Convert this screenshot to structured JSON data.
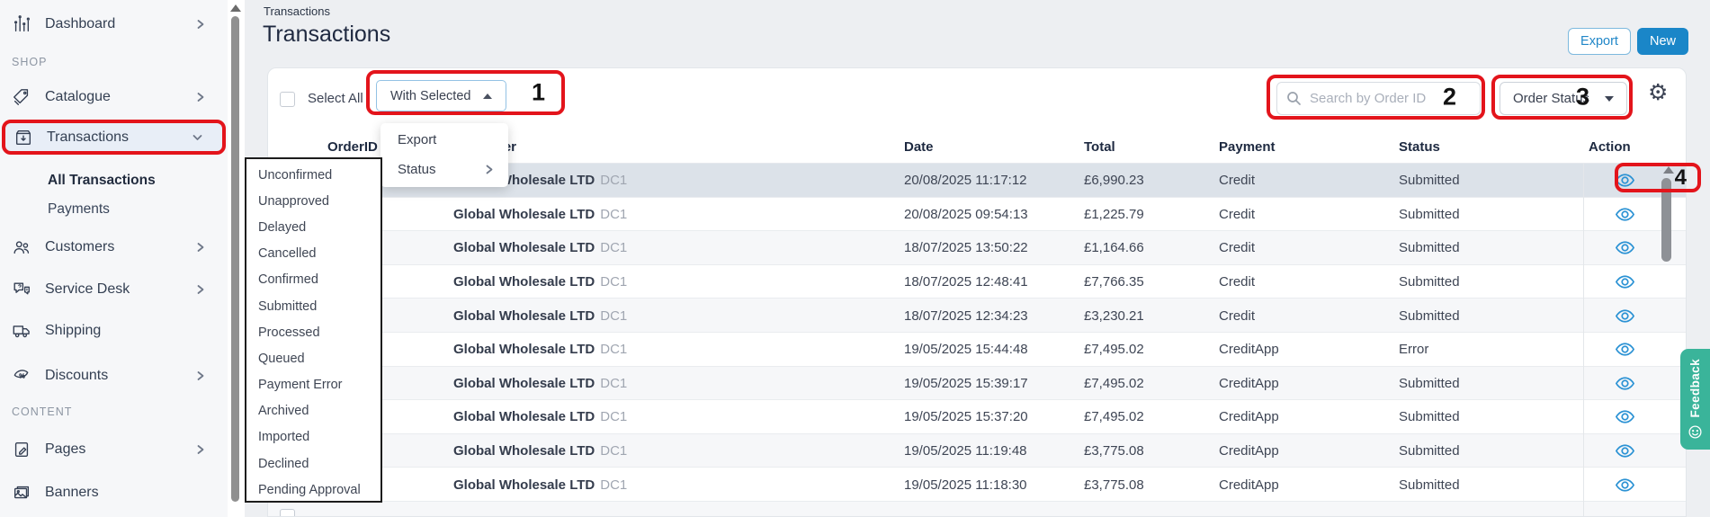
{
  "app": {
    "breadcrumb": "Transactions",
    "title": "Transactions"
  },
  "header_buttons": {
    "export": "Export",
    "new": "New"
  },
  "toolbar": {
    "select_all": "Select All",
    "with_selected": "With Selected",
    "search_placeholder": "Search by Order ID",
    "order_status": "Order Status",
    "gear_icon": "⚙"
  },
  "sidebar": {
    "items": [
      {
        "label": "Dashboard",
        "icon": "dashboard-icon",
        "chevron": "right"
      },
      {
        "label": "SHOP",
        "type": "section"
      },
      {
        "label": "Catalogue",
        "icon": "catalogue-icon",
        "chevron": "right"
      },
      {
        "label": "Transactions",
        "icon": "transactions-icon",
        "chevron": "down",
        "active": true
      },
      {
        "label": "All Transactions",
        "type": "subitem",
        "active": true
      },
      {
        "label": "Payments",
        "type": "subitem"
      },
      {
        "label": "Customers",
        "icon": "customers-icon",
        "chevron": "right"
      },
      {
        "label": "Service Desk",
        "icon": "service-desk-icon",
        "chevron": "right"
      },
      {
        "label": "Shipping",
        "icon": "shipping-icon"
      },
      {
        "label": "Discounts",
        "icon": "discounts-icon",
        "chevron": "right"
      },
      {
        "label": "CONTENT",
        "type": "section"
      },
      {
        "label": "Pages",
        "icon": "pages-icon",
        "chevron": "right"
      },
      {
        "label": "Banners",
        "icon": "banners-icon"
      }
    ]
  },
  "with_selected_menu": {
    "items": [
      {
        "label": "Export"
      },
      {
        "label": "Status",
        "has_submenu": true
      }
    ]
  },
  "status_menu": {
    "items": [
      "Unconfirmed",
      "Unapproved",
      "Delayed",
      "Cancelled",
      "Confirmed",
      "Submitted",
      "Processed",
      "Queued",
      "Payment Error",
      "Archived",
      "Imported",
      "Declined",
      "Pending Approval"
    ]
  },
  "table": {
    "headers": [
      "OrderID",
      "Customer",
      "Date",
      "Total",
      "Payment",
      "Status",
      "Action"
    ],
    "rows": [
      {
        "customer": "Global Wholesale LTD",
        "customer_suffix": "DC1",
        "date": "20/08/2025 11:17:12",
        "total": "£6,990.23",
        "payment": "Credit",
        "status": "Submitted",
        "highlighted": true
      },
      {
        "customer": "Global Wholesale LTD",
        "customer_suffix": "DC1",
        "date": "20/08/2025 09:54:13",
        "total": "£1,225.79",
        "payment": "Credit",
        "status": "Submitted"
      },
      {
        "customer": "Global Wholesale LTD",
        "customer_suffix": "DC1",
        "date": "18/07/2025 13:50:22",
        "total": "£1,164.66",
        "payment": "Credit",
        "status": "Submitted"
      },
      {
        "customer": "Global Wholesale LTD",
        "customer_suffix": "DC1",
        "date": "18/07/2025 12:48:41",
        "total": "£7,766.35",
        "payment": "Credit",
        "status": "Submitted"
      },
      {
        "customer": "Global Wholesale LTD",
        "customer_suffix": "DC1",
        "date": "18/07/2025 12:34:23",
        "total": "£3,230.21",
        "payment": "Credit",
        "status": "Submitted"
      },
      {
        "customer": "Global Wholesale LTD",
        "customer_suffix": "DC1",
        "date": "19/05/2025 15:44:48",
        "total": "£7,495.02",
        "payment": "CreditApp",
        "status": "Error"
      },
      {
        "customer": "Global Wholesale LTD",
        "customer_suffix": "DC1",
        "date": "19/05/2025 15:39:17",
        "total": "£7,495.02",
        "payment": "CreditApp",
        "status": "Submitted"
      },
      {
        "customer": "Global Wholesale LTD",
        "customer_suffix": "DC1",
        "date": "19/05/2025 15:37:20",
        "total": "£7,495.02",
        "payment": "CreditApp",
        "status": "Submitted"
      },
      {
        "customer": "Global Wholesale LTD",
        "customer_suffix": "DC1",
        "date": "19/05/2025 11:19:48",
        "total": "£3,775.08",
        "payment": "CreditApp",
        "status": "Submitted"
      },
      {
        "customer": "Global Wholesale LTD",
        "customer_suffix": "DC1",
        "date": "19/05/2025 11:18:30",
        "total": "£3,775.08",
        "payment": "CreditApp",
        "status": "Submitted"
      },
      {
        "partial": true
      }
    ]
  },
  "annotations": [
    {
      "label": "1"
    },
    {
      "label": "2"
    },
    {
      "label": "3"
    },
    {
      "label": "4"
    }
  ],
  "feedback": {
    "label": "Feedback"
  },
  "colors": {
    "accent_blue": "#1a86c8",
    "eye_blue": "#2b92d4",
    "annotation_red": "#e3141b",
    "feedback_teal": "#3ab49a",
    "row_highlight": "#dce2e9",
    "sidebar_active_bg": "#e8eef7"
  }
}
